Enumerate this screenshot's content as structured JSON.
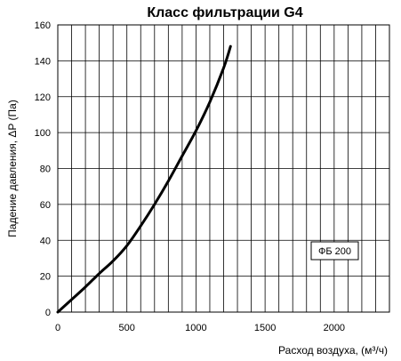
{
  "chart_data": {
    "type": "line",
    "title": "Класс фильтрации G4",
    "xlabel": "Расход воздуха, (м³/ч)",
    "ylabel": "Падение давления, ΔP (Па)",
    "xlim": [
      0,
      2400
    ],
    "ylim": [
      0,
      160
    ],
    "xticks": [
      0,
      500,
      1000,
      1500,
      2000
    ],
    "yticks": [
      0,
      20,
      40,
      60,
      80,
      100,
      120,
      140,
      160
    ],
    "x_minor_step": 100,
    "grid": true,
    "legend_position": "right",
    "series": [
      {
        "name": "ФБ 200",
        "x": [
          0,
          100,
          200,
          300,
          400,
          500,
          600,
          700,
          800,
          900,
          1000,
          1100,
          1200,
          1250
        ],
        "y": [
          0,
          7,
          14,
          21.5,
          28.5,
          37,
          48,
          60,
          73,
          87,
          101,
          117,
          136,
          148
        ],
        "color": "#000000"
      }
    ]
  }
}
